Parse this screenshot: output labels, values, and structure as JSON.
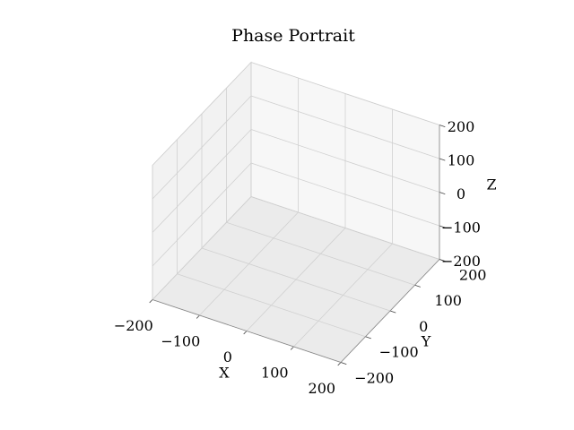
{
  "chart_data": {
    "type": "quiver3d",
    "title": "Phase Portrait",
    "xlabel": "X",
    "ylabel": "Y",
    "zlabel": "Z",
    "xlim": [
      -200,
      200
    ],
    "ylim": [
      -200,
      200
    ],
    "zlim": [
      -200,
      200
    ],
    "xticks": [
      {
        "value": -200,
        "label": "−200"
      },
      {
        "value": -100,
        "label": "−100"
      },
      0,
      100,
      200
    ],
    "yticks": [
      {
        "value": -200,
        "label": "−200"
      },
      {
        "value": -100,
        "label": "−100"
      },
      0,
      100,
      200
    ],
    "zticks": [
      {
        "value": -200,
        "label": "−200"
      },
      {
        "value": -100,
        "label": "−100"
      },
      0,
      100,
      200
    ],
    "grid": true
  }
}
